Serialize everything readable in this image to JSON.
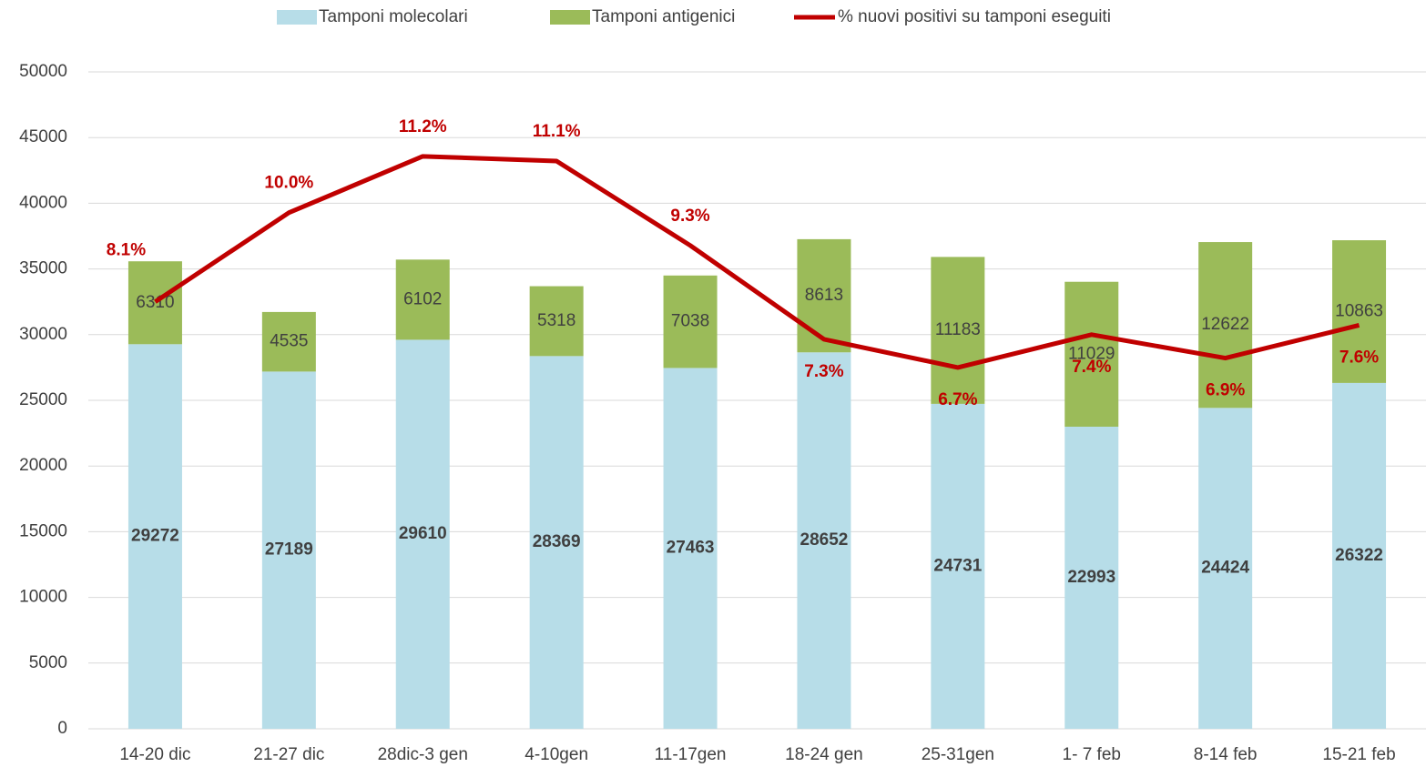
{
  "chart_data": {
    "type": "bar-line",
    "stacked": true,
    "categories": [
      "14-20 dic",
      "21-27 dic",
      "28dic-3 gen",
      "4-10gen",
      "11-17gen",
      "18-24 gen",
      "25-31gen",
      "1- 7 feb",
      "8-14 feb",
      "15-21 feb"
    ],
    "series": [
      {
        "name": "Tamponi molecolari",
        "type": "bar",
        "color": "#b7dde8",
        "values": [
          29272,
          27189,
          29610,
          28369,
          27463,
          28652,
          24731,
          22993,
          24424,
          26322
        ]
      },
      {
        "name": "Tamponi antigenici",
        "type": "bar",
        "color": "#9bbb59",
        "values": [
          6310,
          4535,
          6102,
          5318,
          7038,
          8613,
          11183,
          11029,
          12622,
          10863
        ]
      },
      {
        "name": "% nuovi positivi su tamponi eseguiti",
        "type": "line",
        "axis": "y2",
        "color": "#c00000",
        "values": [
          8.1,
          10.0,
          11.2,
          11.1,
          9.3,
          7.3,
          6.7,
          7.4,
          6.9,
          7.6
        ],
        "value_labels": [
          "8.1%",
          "10.0%",
          "11.2%",
          "11.1%",
          "9.3%",
          "7.3%",
          "6.7%",
          "7.4%",
          "6.9%",
          "7.6%"
        ]
      }
    ],
    "ylim": [
      0,
      50000
    ],
    "yticks": [
      0,
      5000,
      10000,
      15000,
      20000,
      25000,
      30000,
      35000,
      40000,
      45000,
      50000
    ],
    "y2lim": [
      -1,
      13
    ],
    "grid": true,
    "legend": "top"
  }
}
